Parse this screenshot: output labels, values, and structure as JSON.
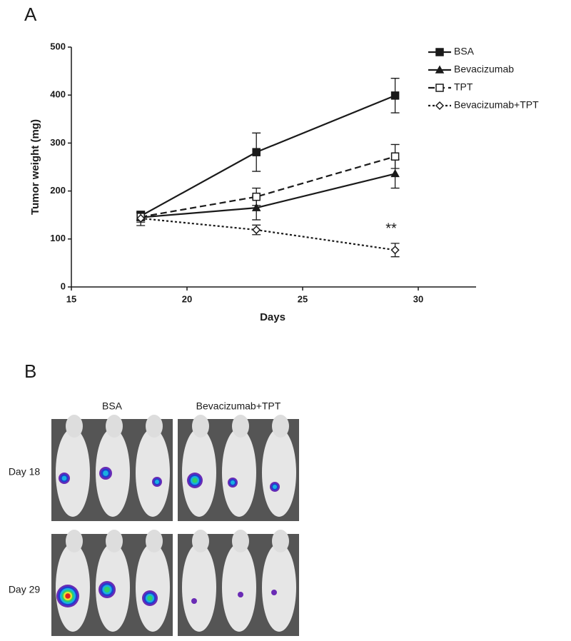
{
  "panel_labels": [
    "A",
    "B"
  ],
  "chart_data": {
    "type": "line",
    "x_label": "Days",
    "y_label": "Tumor weight (mg)",
    "xlim": [
      15,
      32.5
    ],
    "xticks": [
      15,
      20,
      25,
      30
    ],
    "ylim": [
      0,
      500
    ],
    "yticks": [
      0,
      100,
      200,
      300,
      400,
      500
    ],
    "legend": "top-right",
    "annotation": "**",
    "series": [
      {
        "name": "BSA",
        "color": "#1a1a1a",
        "marker": "square-filled",
        "dash": "solid",
        "x": [
          18,
          23,
          29
        ],
        "values": [
          148,
          281,
          399
        ],
        "errors": [
          8,
          40,
          36
        ]
      },
      {
        "name": "Bevacizumab",
        "color": "#1a1a1a",
        "marker": "triangle-filled",
        "dash": "solid",
        "x": [
          18,
          23,
          29
        ],
        "values": [
          145,
          165,
          236
        ],
        "errors": [
          10,
          25,
          30
        ]
      },
      {
        "name": "TPT",
        "color": "#1a1a1a",
        "marker": "square-open",
        "dash": "dashed",
        "x": [
          18,
          23,
          29
        ],
        "values": [
          146,
          188,
          272
        ],
        "errors": [
          8,
          18,
          25
        ]
      },
      {
        "name": "Bevacizumab+TPT",
        "color": "#1a1a1a",
        "marker": "diamond-open",
        "dash": "dotted",
        "x": [
          18,
          23,
          29
        ],
        "values": [
          143,
          119,
          77
        ],
        "errors": [
          15,
          10,
          14
        ]
      }
    ]
  },
  "imaging": {
    "columns": [
      "BSA",
      "Bevacizumab+TPT"
    ],
    "rows": [
      "Day 18",
      "Day 29"
    ]
  }
}
